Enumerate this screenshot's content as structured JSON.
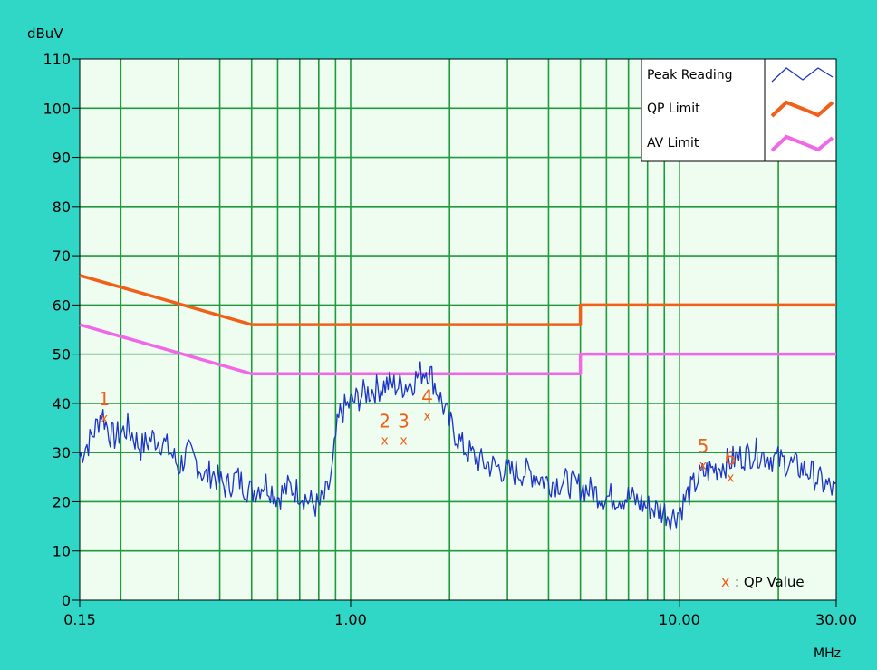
{
  "colors": {
    "frame_bg": "#30d6c6",
    "plot_bg": "#eefdf0",
    "grid": "#1f9a3c",
    "peak": "#1c34c4",
    "qp_limit": "#f06018",
    "av_limit": "#f068e8",
    "qp_marker": "#f06018",
    "text": "#000000"
  },
  "chart_data": {
    "type": "line",
    "title": "",
    "xlabel": "MHz",
    "ylabel": "dBuV",
    "x_scale": "log",
    "xlim": [
      0.15,
      30.0
    ],
    "ylim": [
      0,
      110
    ],
    "grid": true,
    "x_ticks": [
      0.15,
      1.0,
      10.0,
      30.0
    ],
    "x_tick_labels": [
      "0.15",
      "1.00",
      "10.00",
      "30.00"
    ],
    "y_ticks": [
      0,
      10,
      20,
      30,
      40,
      50,
      60,
      70,
      80,
      90,
      100,
      110
    ],
    "y_tick_labels": [
      "0",
      "10",
      "20",
      "30",
      "40",
      "50",
      "60",
      "70",
      "80",
      "90",
      "100",
      "110"
    ],
    "legend": {
      "position": "top-right",
      "entries": [
        {
          "label": "Peak Reading",
          "color": "#1c34c4",
          "style": "thin"
        },
        {
          "label": "QP Limit",
          "color": "#f06018",
          "style": "thick"
        },
        {
          "label": "AV Limit",
          "color": "#f068e8",
          "style": "thick"
        }
      ]
    },
    "qp_legend_label": ": QP Value",
    "series": [
      {
        "name": "Peak Reading",
        "x": [
          0.15,
          0.155,
          0.16,
          0.165,
          0.17,
          0.175,
          0.18,
          0.185,
          0.19,
          0.2,
          0.21,
          0.22,
          0.23,
          0.25,
          0.27,
          0.29,
          0.3,
          0.32,
          0.34,
          0.36,
          0.38,
          0.4,
          0.42,
          0.45,
          0.48,
          0.5,
          0.55,
          0.6,
          0.65,
          0.7,
          0.75,
          0.8,
          0.85,
          0.88,
          0.9,
          0.93,
          0.96,
          1.0,
          1.05,
          1.1,
          1.2,
          1.3,
          1.4,
          1.5,
          1.55,
          1.6,
          1.65,
          1.7,
          1.75,
          1.8,
          1.9,
          2.0,
          2.2,
          2.5,
          2.8,
          3.0,
          3.5,
          4.0,
          4.5,
          5.0,
          5.5,
          6.0,
          7.0,
          8.0,
          9.0,
          9.5,
          10.0,
          10.5,
          11.0,
          11.5,
          12.0,
          13.0,
          14.0,
          15.0,
          17.0,
          19.0,
          21.0,
          23.0,
          25.0,
          27.0,
          30.0
        ],
        "y": [
          29,
          31,
          32,
          34,
          36,
          38.5,
          36,
          34,
          33,
          34,
          35,
          33,
          31,
          33,
          32,
          29,
          27,
          30,
          28,
          25,
          26,
          24,
          23,
          25,
          23,
          22,
          24,
          21,
          23,
          22,
          20,
          19,
          22,
          26,
          33,
          38,
          39,
          40,
          41,
          42,
          43,
          44,
          43.5,
          44,
          44.5,
          45.5,
          46.5,
          47,
          46,
          44,
          40,
          36,
          31,
          28,
          27,
          26,
          26,
          24,
          24,
          23,
          22,
          21,
          21,
          19,
          18,
          17,
          18,
          21,
          23,
          25,
          26,
          27,
          28,
          29,
          30,
          29,
          28,
          27,
          26,
          24,
          22
        ]
      },
      {
        "name": "QP Limit",
        "x": [
          0.15,
          0.5,
          0.5,
          5.0,
          5.0,
          30.0
        ],
        "y": [
          66,
          56,
          56,
          56,
          60,
          60
        ]
      },
      {
        "name": "AV Limit",
        "x": [
          0.15,
          0.5,
          0.5,
          5.0,
          5.0,
          30.0
        ],
        "y": [
          56,
          46,
          46,
          46,
          50,
          50
        ]
      }
    ],
    "qp_values": [
      {
        "label": "1",
        "x": 0.178,
        "y": 37.0
      },
      {
        "label": "2",
        "x": 1.27,
        "y": 32.5
      },
      {
        "label": "3",
        "x": 1.45,
        "y": 32.5
      },
      {
        "label": "4",
        "x": 1.71,
        "y": 37.5
      },
      {
        "label": "5",
        "x": 11.8,
        "y": 27.5
      },
      {
        "label": "6",
        "x": 14.3,
        "y": 25.0
      }
    ]
  }
}
